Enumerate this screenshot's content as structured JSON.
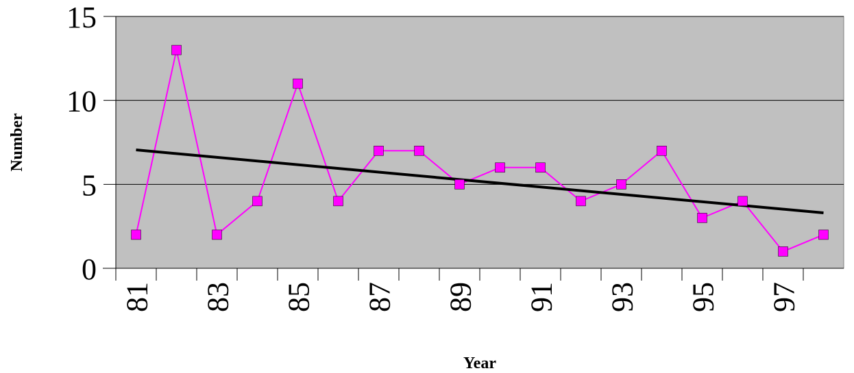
{
  "chart_data": {
    "type": "line",
    "title": "",
    "xlabel": "Year",
    "ylabel": "Number",
    "x": [
      81,
      82,
      83,
      84,
      85,
      86,
      87,
      88,
      89,
      90,
      91,
      92,
      93,
      94,
      95,
      96,
      97,
      98
    ],
    "x_tick_labels": [
      "81",
      "83",
      "85",
      "87",
      "89",
      "91",
      "93",
      "95",
      "97"
    ],
    "y_tick_labels": [
      "0",
      "5",
      "10",
      "15"
    ],
    "ylim": [
      0,
      15
    ],
    "grid": "horizontal",
    "series": [
      {
        "values": [
          2,
          13,
          2,
          4,
          11,
          4,
          7,
          7,
          5,
          6,
          6,
          4,
          5,
          7,
          3,
          4,
          1,
          2
        ],
        "color": "#ff00ff",
        "marker": "square"
      },
      {
        "kind": "linear trendline",
        "values": [
          7.05,
          3.3
        ],
        "x": [
          81,
          98
        ],
        "color": "#000000"
      }
    ],
    "plot_background": "#c0c0c0"
  }
}
